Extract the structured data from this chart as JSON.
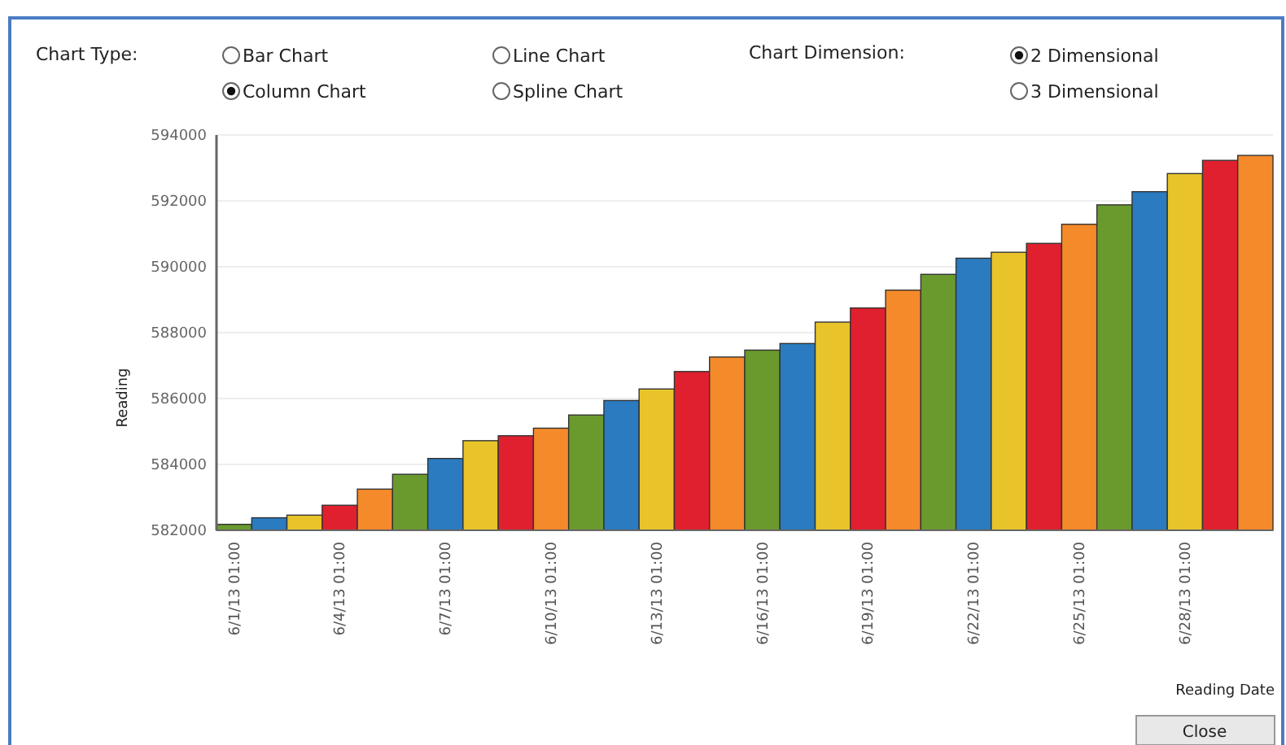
{
  "chart_data": {
    "type": "bar",
    "xlabel": "Reading Date",
    "ylabel": "Reading",
    "categories": [
      "6/1/13 01:00",
      null,
      null,
      "6/4/13 01:00",
      null,
      null,
      "6/7/13 01:00",
      null,
      null,
      "6/10/13 01:00",
      null,
      null,
      "6/13/13 01:00",
      null,
      null,
      "6/16/13 01:00",
      null,
      null,
      "6/19/13 01:00",
      null,
      null,
      "6/22/13 01:00",
      null,
      null,
      "6/25/13 01:00",
      null,
      null,
      "6/28/13 01:00",
      null,
      null
    ],
    "values": [
      582180,
      582380,
      582460,
      582760,
      583250,
      583700,
      584180,
      584720,
      584870,
      585100,
      585500,
      585940,
      586290,
      586820,
      587260,
      587470,
      587670,
      588320,
      588750,
      589290,
      589770,
      590260,
      590440,
      590710,
      591290,
      591880,
      592280,
      592830,
      593230,
      593380
    ],
    "colors": [
      "#6a9a2e",
      "#2a7bc0",
      "#e8c42a",
      "#e0202e",
      "#f58a2a",
      "#6a9a2e",
      "#2a7bc0",
      "#e8c42a",
      "#e0202e",
      "#f58a2a",
      "#6a9a2e",
      "#2a7bc0",
      "#e8c42a",
      "#e0202e",
      "#f58a2a",
      "#6a9a2e",
      "#2a7bc0",
      "#e8c42a",
      "#e0202e",
      "#f58a2a",
      "#6a9a2e",
      "#2a7bc0",
      "#e8c42a",
      "#e0202e",
      "#f58a2a",
      "#6a9a2e",
      "#2a7bc0",
      "#e8c42a",
      "#e0202e",
      "#f58a2a"
    ],
    "ylim": [
      582000,
      594000
    ],
    "yticks": [
      582000,
      584000,
      586000,
      588000,
      590000,
      592000,
      594000
    ],
    "grid": "y",
    "annotations": [
      "Chart Type:",
      "Bar Chart",
      "Column Chart",
      "Line Chart",
      "Spline Chart",
      "Chart Dimension:",
      "2 Dimensional",
      "3 Dimensional",
      "Close"
    ]
  }
}
